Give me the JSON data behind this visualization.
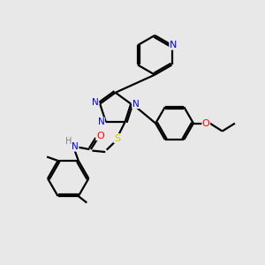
{
  "background_color": "#e8e8e8",
  "bond_color": "#000000",
  "line_width": 1.6,
  "atom_colors": {
    "N": "#0000ff",
    "O": "#ff0000",
    "S": "#cccc00",
    "H": "#808080",
    "C": "#000000"
  },
  "font_size": 7.5
}
